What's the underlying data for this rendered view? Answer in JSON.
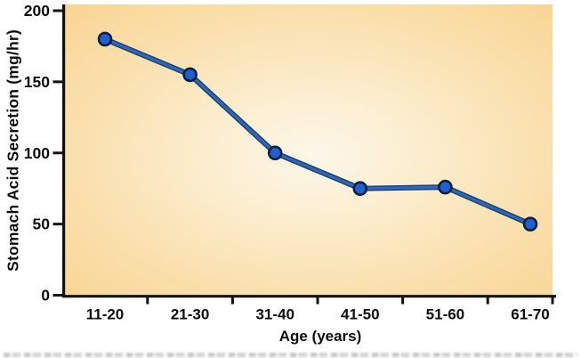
{
  "chart_data": {
    "type": "line",
    "title": "",
    "xlabel": "Age (years)",
    "ylabel": "Stomach Acid Secretion (mg/hr)",
    "categories": [
      "11-20",
      "21-30",
      "31-40",
      "41-50",
      "51-60",
      "61-70"
    ],
    "values": [
      180,
      155,
      100,
      75,
      76,
      50
    ],
    "ylim": [
      0,
      200
    ],
    "yticks": [
      0,
      50,
      100,
      150,
      200
    ],
    "grid": false,
    "legend": "none",
    "marker": "circle",
    "colors": {
      "line": "#2e68b6",
      "line_edge": "#1b3f72",
      "marker_fill": "#1e5fd2",
      "marker_stroke": "#0e1f3a",
      "plot_bg_center": "#fdf7e9",
      "plot_bg_mid": "#fbe9c4",
      "plot_bg_edge": "#f8d28d",
      "axis": "#121212",
      "text": "#0d0d0d"
    }
  }
}
